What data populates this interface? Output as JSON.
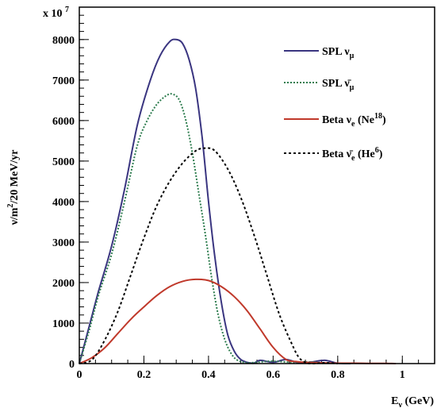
{
  "chart_data": {
    "type": "line",
    "title": "",
    "multiplier_label": "x 10",
    "multiplier_exponent": "7",
    "xlabel": {
      "main": "E",
      "sub": "ν",
      "unit": " (GeV)"
    },
    "ylabel": {
      "a": "ν/m",
      "sup": "2",
      "b": "/20 MeV/yr"
    },
    "xlim": [
      0,
      1.1
    ],
    "ylim": [
      0,
      8800
    ],
    "xticks": [
      {
        "v": 0,
        "label": "0"
      },
      {
        "v": 0.2,
        "label": "0.2"
      },
      {
        "v": 0.4,
        "label": "0.4"
      },
      {
        "v": 0.6,
        "label": "0.6"
      },
      {
        "v": 0.8,
        "label": "0.8"
      },
      {
        "v": 1.0,
        "label": "1"
      }
    ],
    "yticks": [
      {
        "v": 0,
        "label": "0"
      },
      {
        "v": 1000,
        "label": "1000"
      },
      {
        "v": 2000,
        "label": "2000"
      },
      {
        "v": 3000,
        "label": "3000"
      },
      {
        "v": 4000,
        "label": "4000"
      },
      {
        "v": 5000,
        "label": "5000"
      },
      {
        "v": 6000,
        "label": "6000"
      },
      {
        "v": 7000,
        "label": "7000"
      },
      {
        "v": 8000,
        "label": "8000"
      }
    ],
    "legend_position": "top-right",
    "series": [
      {
        "name": "SPL ν_μ",
        "legend": {
          "prefix": "SPL ",
          "sym": "ν",
          "sub": "μ",
          "rest": "",
          "sup": "",
          "close": ""
        },
        "color": "#3a3580",
        "dash": "",
        "x": [
          0,
          0.03,
          0.06,
          0.1,
          0.14,
          0.18,
          0.22,
          0.25,
          0.28,
          0.3,
          0.32,
          0.34,
          0.36,
          0.38,
          0.4,
          0.42,
          0.44,
          0.46,
          0.48,
          0.5,
          0.52,
          0.54,
          0.56,
          0.6,
          0.64,
          0.68,
          0.72,
          0.76,
          0.8,
          0.84
        ],
        "y": [
          0,
          900,
          1800,
          2900,
          4300,
          5900,
          7000,
          7600,
          7950,
          8000,
          7900,
          7500,
          6800,
          5600,
          4000,
          2600,
          1500,
          700,
          300,
          100,
          30,
          10,
          80,
          30,
          100,
          20,
          40,
          80,
          10,
          0
        ]
      },
      {
        "name": "SPL ν̄_μ",
        "legend": {
          "prefix": "SPL ",
          "sym": "ν̄",
          "sub": "μ",
          "rest": "",
          "sup": "",
          "close": ""
        },
        "color": "#2e7d4f",
        "dash": "2,2",
        "x": [
          0,
          0.03,
          0.06,
          0.1,
          0.14,
          0.18,
          0.21,
          0.24,
          0.27,
          0.29,
          0.31,
          0.33,
          0.35,
          0.37,
          0.39,
          0.41,
          0.43,
          0.45,
          0.47,
          0.49,
          0.52,
          0.56,
          0.6,
          0.66,
          0.72,
          0.76
        ],
        "y": [
          0,
          800,
          1700,
          2700,
          4000,
          5400,
          6000,
          6400,
          6620,
          6650,
          6500,
          6000,
          5200,
          4200,
          3200,
          2100,
          1200,
          600,
          250,
          80,
          20,
          40,
          60,
          30,
          40,
          0
        ]
      },
      {
        "name": "Beta ν_e (Ne^18)",
        "legend": {
          "prefix": "Beta ",
          "sym": "ν",
          "sub": "e",
          "rest": " (Ne",
          "sup": "18",
          "close": ")"
        },
        "color": "#c0392b",
        "dash": "",
        "x": [
          0,
          0.04,
          0.08,
          0.12,
          0.16,
          0.2,
          0.24,
          0.28,
          0.32,
          0.36,
          0.4,
          0.44,
          0.48,
          0.52,
          0.56,
          0.6,
          0.64,
          0.67,
          0.7,
          0.75,
          0.8,
          0.85,
          0.9,
          0.95,
          0.98
        ],
        "y": [
          0,
          150,
          400,
          750,
          1100,
          1400,
          1680,
          1900,
          2030,
          2080,
          2050,
          1900,
          1650,
          1300,
          850,
          400,
          100,
          50,
          30,
          20,
          10,
          10,
          5,
          5,
          0
        ]
      },
      {
        "name": "Beta ν̄_e (He^6)",
        "legend": {
          "prefix": "Beta  ",
          "sym": "ν̄",
          "sub": "e",
          "rest": " (He",
          "sup": "6",
          "close": ")"
        },
        "color": "#000000",
        "dash": "3,3",
        "x": [
          0,
          0.04,
          0.08,
          0.12,
          0.16,
          0.2,
          0.24,
          0.28,
          0.32,
          0.36,
          0.39,
          0.42,
          0.46,
          0.5,
          0.54,
          0.58,
          0.62,
          0.66,
          0.68,
          0.7,
          0.72,
          0.76,
          0.8
        ],
        "y": [
          0,
          100,
          600,
          1300,
          2200,
          3100,
          3900,
          4500,
          4950,
          5250,
          5320,
          5250,
          4800,
          4100,
          3200,
          2200,
          1200,
          450,
          150,
          30,
          0,
          20,
          0
        ]
      }
    ]
  }
}
